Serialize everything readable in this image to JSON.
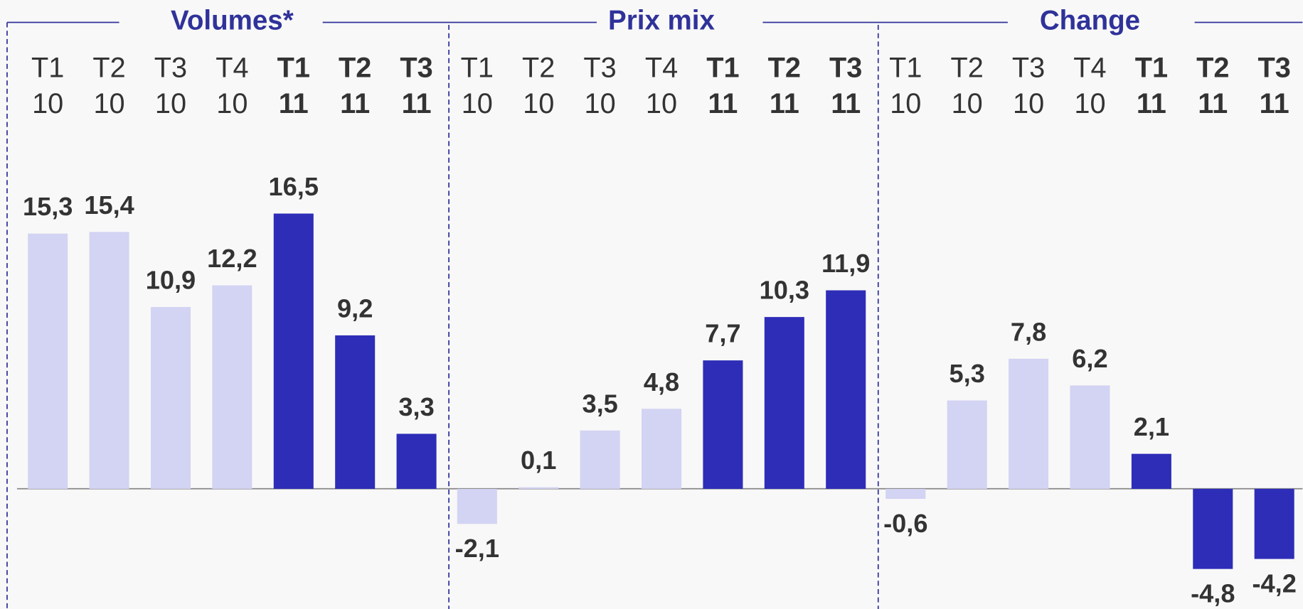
{
  "chart_data": [
    {
      "type": "bar",
      "title": "Volumes*",
      "categories": [
        [
          "T1",
          "10"
        ],
        [
          "T2",
          "10"
        ],
        [
          "T3",
          "10"
        ],
        [
          "T4",
          "10"
        ],
        [
          "T1",
          "11"
        ],
        [
          "T2",
          "11"
        ],
        [
          "T3",
          "11"
        ]
      ],
      "values": [
        15.3,
        15.4,
        10.9,
        12.2,
        16.5,
        9.2,
        3.3
      ],
      "value_labels": [
        "15,3",
        "15,4",
        "10,9",
        "12,2",
        "16,5",
        "9,2",
        "3,3"
      ],
      "colors": [
        "#d3d3f3",
        "#d3d3f3",
        "#d3d3f3",
        "#d3d3f3",
        "#2e2db8",
        "#2e2db8",
        "#2e2db8"
      ],
      "bold": [
        false,
        false,
        false,
        false,
        true,
        true,
        true
      ],
      "ylim": [
        -7.2,
        29.3
      ]
    },
    {
      "type": "bar",
      "title": "Prix mix",
      "categories": [
        [
          "T1",
          "10"
        ],
        [
          "T2",
          "10"
        ],
        [
          "T3",
          "10"
        ],
        [
          "T4",
          "10"
        ],
        [
          "T1",
          "11"
        ],
        [
          "T2",
          "11"
        ],
        [
          "T3",
          "11"
        ]
      ],
      "values": [
        -2.1,
        0.1,
        3.5,
        4.8,
        7.7,
        10.3,
        11.9
      ],
      "value_labels": [
        "-2,1",
        "0,1",
        "3,5",
        "4,8",
        "7,7",
        "10,3",
        "11,9"
      ],
      "colors": [
        "#d3d3f3",
        "#d3d3f3",
        "#d3d3f3",
        "#d3d3f3",
        "#2e2db8",
        "#2e2db8",
        "#2e2db8"
      ],
      "bold": [
        false,
        false,
        false,
        false,
        true,
        true,
        true
      ],
      "ylim": [
        -7.2,
        29.3
      ]
    },
    {
      "type": "bar",
      "title": "Change",
      "categories": [
        [
          "T1",
          "10"
        ],
        [
          "T2",
          "10"
        ],
        [
          "T3",
          "10"
        ],
        [
          "T4",
          "10"
        ],
        [
          "T1",
          "11"
        ],
        [
          "T2",
          "11"
        ],
        [
          "T3",
          "11"
        ]
      ],
      "values": [
        -0.6,
        5.3,
        7.8,
        6.2,
        2.1,
        -4.8,
        -4.2
      ],
      "value_labels": [
        "-0,6",
        "5,3",
        "7,8",
        "6,2",
        "2,1",
        "-4,8",
        "-4,2"
      ],
      "colors": [
        "#d3d3f3",
        "#d3d3f3",
        "#d3d3f3",
        "#d3d3f3",
        "#2e2db8",
        "#2e2db8",
        "#2e2db8"
      ],
      "bold": [
        false,
        false,
        false,
        false,
        true,
        true,
        true
      ],
      "ylim": [
        -7.2,
        29.3
      ]
    }
  ]
}
